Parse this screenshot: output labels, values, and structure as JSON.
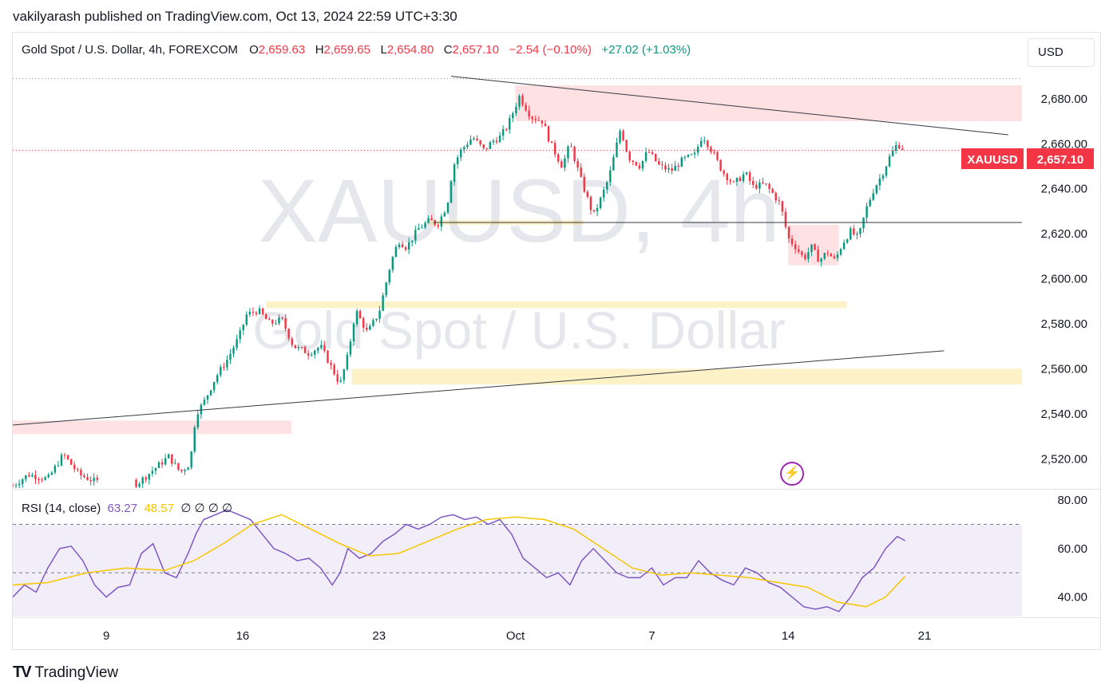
{
  "header": {
    "publisher": "vakilyarash published on TradingView.com, Oct 13, 2024 22:59 UTC+3:30"
  },
  "legend": {
    "symbol": "Gold Spot / U.S. Dollar, 4h, FOREXCOM",
    "o_label": "O",
    "o_value": "2,659.63",
    "h_label": "H",
    "h_value": "2,659.65",
    "l_label": "L",
    "l_value": "2,654.80",
    "c_label": "C",
    "c_value": "2,657.10",
    "change": "−2.54 (−0.10%)",
    "change2": "+27.02 (+1.03%)"
  },
  "currency_button": "USD",
  "watermark": {
    "line1": "XAUUSD, 4h",
    "line2": "Gold Spot / U.S. Dollar"
  },
  "price_tag": {
    "symbol": "XAUUSD",
    "value": "2,657.10"
  },
  "rsi_legend": {
    "name": "RSI (14, close)",
    "v1": "63.27",
    "v2": "48.57",
    "rest": "∅ ∅ ∅ ∅"
  },
  "footer": {
    "brand": "TradingView"
  },
  "colors": {
    "up": "#089981",
    "down": "#f23645",
    "rsi": "#7e57c2",
    "rsi_ma": "#f7c600",
    "accent": "#9c27b0"
  },
  "chart_data": [
    {
      "type": "candlestick",
      "title": "Gold Spot / U.S. Dollar, 4h, FOREXCOM",
      "ylim": [
        2507,
        2692
      ],
      "y_ticks": [
        "2,520.00",
        "2,540.00",
        "2,560.00",
        "2,580.00",
        "2,600.00",
        "2,620.00",
        "2,640.00",
        "2,660.00",
        "2,680.00"
      ],
      "x_ticks": [
        "9",
        "16",
        "23",
        "Oct",
        "7",
        "14",
        "21"
      ],
      "x_tick_days": [
        9,
        16,
        23,
        30,
        37,
        44,
        51
      ],
      "x_range_days": [
        4.2,
        56
      ],
      "close_path": [
        [
          4.2,
          2508
        ],
        [
          5.0,
          2513
        ],
        [
          6.0,
          2511
        ],
        [
          6.8,
          2522
        ],
        [
          7.6,
          2513
        ],
        [
          8.4,
          2510
        ],
        [
          10.6,
          2509
        ],
        [
          11.4,
          2515
        ],
        [
          12.2,
          2521
        ],
        [
          12.8,
          2514
        ],
        [
          13.3,
          2518
        ],
        [
          13.6,
          2540
        ],
        [
          14.0,
          2545
        ],
        [
          14.6,
          2556
        ],
        [
          15.2,
          2564
        ],
        [
          15.8,
          2574
        ],
        [
          16.2,
          2584
        ],
        [
          16.8,
          2586
        ],
        [
          17.4,
          2580
        ],
        [
          18.0,
          2582
        ],
        [
          18.6,
          2570
        ],
        [
          19.4,
          2567
        ],
        [
          20.0,
          2570
        ],
        [
          20.6,
          2560
        ],
        [
          21.0,
          2553
        ],
        [
          21.4,
          2566
        ],
        [
          21.8,
          2586
        ],
        [
          22.4,
          2576
        ],
        [
          23.0,
          2585
        ],
        [
          23.6,
          2607
        ],
        [
          24.0,
          2617
        ],
        [
          24.4,
          2614
        ],
        [
          25.0,
          2622
        ],
        [
          25.6,
          2626
        ],
        [
          26.0,
          2624
        ],
        [
          26.5,
          2633
        ],
        [
          26.8,
          2650
        ],
        [
          27.2,
          2657
        ],
        [
          27.8,
          2663
        ],
        [
          28.4,
          2657
        ],
        [
          28.8,
          2661
        ],
        [
          29.2,
          2663
        ],
        [
          29.6,
          2668
        ],
        [
          30.2,
          2681
        ],
        [
          30.8,
          2672
        ],
        [
          31.4,
          2670
        ],
        [
          31.8,
          2660
        ],
        [
          32.4,
          2650
        ],
        [
          32.8,
          2660
        ],
        [
          33.4,
          2643
        ],
        [
          34.0,
          2628
        ],
        [
          34.4,
          2636
        ],
        [
          34.8,
          2645
        ],
        [
          35.4,
          2667
        ],
        [
          35.8,
          2654
        ],
        [
          36.4,
          2650
        ],
        [
          36.8,
          2657
        ],
        [
          37.4,
          2650
        ],
        [
          38.0,
          2648
        ],
        [
          38.6,
          2653
        ],
        [
          39.2,
          2655
        ],
        [
          39.6,
          2664
        ],
        [
          40.2,
          2655
        ],
        [
          40.6,
          2648
        ],
        [
          41.2,
          2642
        ],
        [
          41.8,
          2647
        ],
        [
          42.2,
          2641
        ],
        [
          42.8,
          2642
        ],
        [
          43.2,
          2638
        ],
        [
          43.6,
          2633
        ],
        [
          44.0,
          2618
        ],
        [
          44.4,
          2614
        ],
        [
          44.8,
          2609
        ],
        [
          45.2,
          2614
        ],
        [
          45.6,
          2608
        ],
        [
          46.0,
          2612
        ],
        [
          46.4,
          2608
        ],
        [
          46.8,
          2616
        ],
        [
          47.2,
          2621
        ],
        [
          47.6,
          2618
        ],
        [
          48.0,
          2631
        ],
        [
          48.4,
          2640
        ],
        [
          48.8,
          2646
        ],
        [
          49.2,
          2654
        ],
        [
          49.6,
          2660
        ],
        [
          50.0,
          2657.1
        ]
      ],
      "last_close": 2657.1,
      "trend_lines": [
        {
          "from": [
            26.7,
            2690
          ],
          "to": [
            55.3,
            2664
          ]
        },
        {
          "from": [
            4.2,
            2535
          ],
          "to": [
            52.0,
            2568
          ]
        },
        {
          "from": [
            25.8,
            2625
          ],
          "to": [
            58.0,
            2625
          ]
        }
      ],
      "zones": [
        {
          "day_from": 30.0,
          "day_to": 56.5,
          "low": 2670,
          "high": 2686,
          "color": "red"
        },
        {
          "day_from": 4.2,
          "day_to": 18.5,
          "low": 2531,
          "high": 2537,
          "color": "red"
        },
        {
          "day_from": 17.2,
          "day_to": 47.0,
          "low": 2587,
          "high": 2590,
          "color": "yellow"
        },
        {
          "day_from": 21.6,
          "day_to": 56.5,
          "low": 2553,
          "high": 2560,
          "color": "yellow"
        },
        {
          "day_from": 25.5,
          "day_to": 33.5,
          "low": 2624,
          "high": 2626,
          "color": "yellow"
        },
        {
          "day_from": 44.0,
          "day_to": 46.6,
          "low": 2606,
          "high": 2624,
          "color": "red"
        }
      ]
    },
    {
      "type": "line",
      "title": "RSI (14, close)",
      "ylim": [
        32,
        84
      ],
      "y_ticks": [
        "40.00",
        "60.00",
        "80.00"
      ],
      "bands": [
        30,
        50,
        70
      ],
      "series": [
        {
          "color": "#7e57c2",
          "x": [
            4.2,
            4.8,
            5.4,
            6.0,
            6.6,
            7.2,
            7.8,
            8.4,
            9.0,
            9.6,
            10.2,
            10.8,
            11.4,
            12.0,
            12.6,
            13.2,
            13.6,
            14.0,
            14.6,
            15.2,
            15.8,
            16.4,
            17.0,
            17.6,
            18.2,
            18.8,
            19.4,
            20.0,
            20.6,
            21.0,
            21.4,
            22.0,
            22.6,
            23.2,
            23.8,
            24.4,
            25.0,
            25.6,
            26.2,
            26.8,
            27.4,
            28.0,
            28.6,
            29.2,
            29.8,
            30.4,
            31.0,
            31.6,
            32.2,
            32.8,
            33.4,
            34.0,
            34.6,
            35.2,
            35.8,
            36.4,
            37.0,
            37.6,
            38.2,
            38.8,
            39.4,
            40.0,
            40.6,
            41.2,
            41.8,
            42.4,
            43.0,
            43.6,
            44.2,
            44.8,
            45.4,
            46.0,
            46.6,
            47.2,
            47.8,
            48.4,
            49.0,
            49.6,
            50.0
          ],
          "values": [
            40,
            45,
            42,
            52,
            60,
            61,
            55,
            45,
            40,
            44,
            45,
            58,
            62,
            50,
            48,
            58,
            66,
            72,
            74,
            76,
            74,
            72,
            66,
            60,
            58,
            55,
            56,
            52,
            45,
            50,
            60,
            56,
            58,
            63,
            66,
            70,
            68,
            70,
            73,
            74,
            72,
            73,
            70,
            72,
            66,
            56,
            52,
            48,
            50,
            45,
            55,
            60,
            55,
            50,
            48,
            48,
            52,
            45,
            48,
            48,
            55,
            50,
            47,
            45,
            52,
            50,
            46,
            44,
            40,
            36,
            35,
            36,
            34,
            40,
            48,
            52,
            60,
            65,
            63.27
          ]
        },
        {
          "color": "#f7c600",
          "x": [
            4.2,
            6.0,
            8.0,
            10.0,
            12.0,
            13.5,
            15.0,
            16.5,
            18.0,
            19.5,
            21.0,
            22.5,
            24.0,
            25.5,
            27.0,
            28.5,
            30.0,
            31.5,
            33.0,
            34.5,
            36.0,
            37.5,
            39.0,
            40.5,
            42.0,
            43.5,
            45.0,
            46.5,
            48.0,
            49.0,
            50.0
          ],
          "values": [
            45,
            46,
            50,
            52,
            51,
            55,
            62,
            70,
            74,
            68,
            62,
            57,
            58,
            63,
            68,
            72,
            73,
            72,
            68,
            60,
            52,
            49,
            50,
            49,
            48,
            46,
            44,
            38,
            36,
            40,
            48.57
          ]
        }
      ]
    }
  ]
}
